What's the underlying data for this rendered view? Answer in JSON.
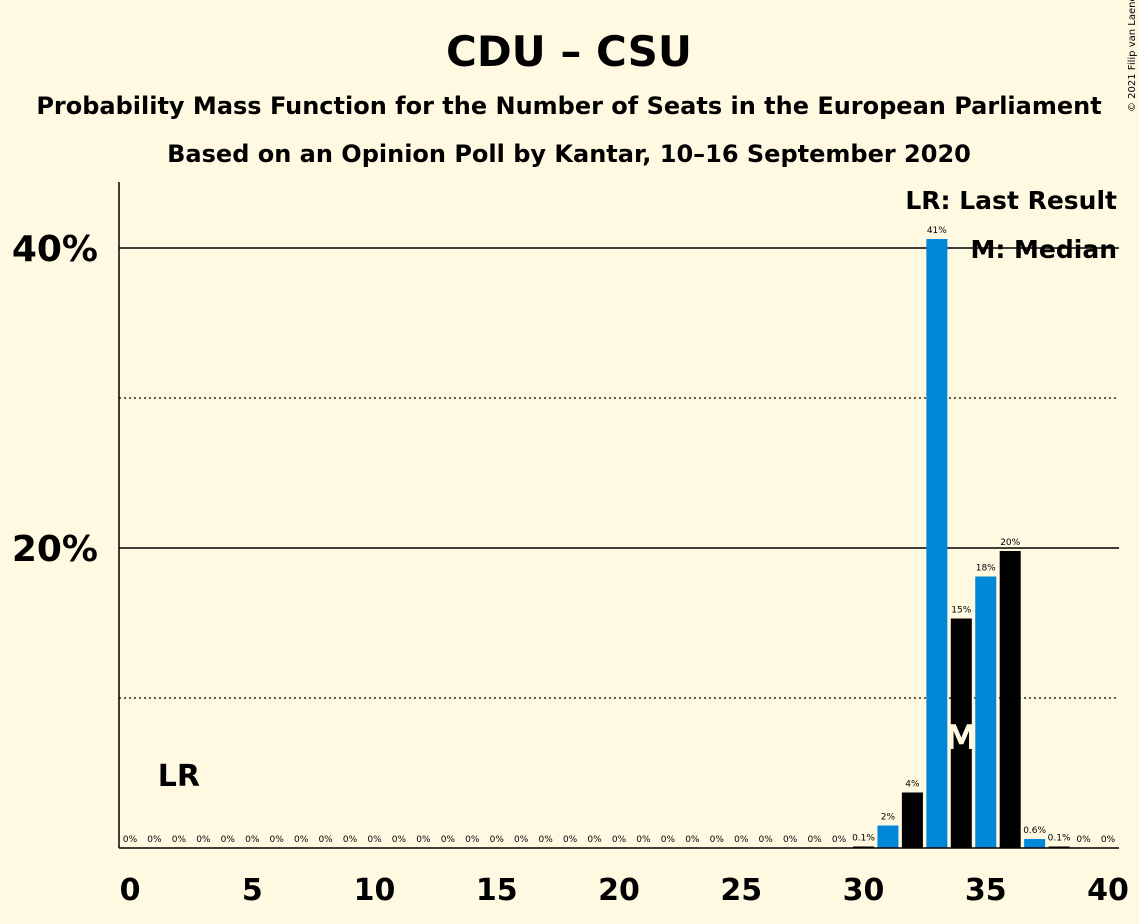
{
  "chart_data": {
    "type": "bar",
    "title": "CDU – CSU",
    "subtitle": "Probability Mass Function for the Number of Seats in the European Parliament",
    "subtitle2": "Based on an Opinion Poll by Kantar, 10–16 September 2020",
    "copyright": "© 2021 Filip van Laenen",
    "x": [
      0,
      1,
      2,
      3,
      4,
      5,
      6,
      7,
      8,
      9,
      10,
      11,
      12,
      13,
      14,
      15,
      16,
      17,
      18,
      19,
      20,
      21,
      22,
      23,
      24,
      25,
      26,
      27,
      28,
      29,
      30,
      31,
      32,
      33,
      34,
      35,
      36,
      37,
      38,
      39,
      40
    ],
    "values": [
      0,
      0,
      0,
      0,
      0,
      0,
      0,
      0,
      0,
      0,
      0,
      0,
      0,
      0,
      0,
      0,
      0,
      0,
      0,
      0,
      0,
      0,
      0,
      0,
      0,
      0,
      0,
      0,
      0,
      0,
      0.1,
      1.5,
      3.7,
      40.6,
      15.3,
      18.1,
      19.8,
      0.6,
      0.1,
      0,
      0
    ],
    "value_labels": [
      "0%",
      "0%",
      "0%",
      "0%",
      "0%",
      "0%",
      "0%",
      "0%",
      "0%",
      "0%",
      "0%",
      "0%",
      "0%",
      "0%",
      "0%",
      "0%",
      "0%",
      "0%",
      "0%",
      "0%",
      "0%",
      "0%",
      "0%",
      "0%",
      "0%",
      "0%",
      "0%",
      "0%",
      "0%",
      "0%",
      "0.1%",
      "2%",
      "4%",
      "41%",
      "15%",
      "18%",
      "20%",
      "0.6%",
      "0.1%",
      "0%",
      "0%"
    ],
    "xlim": [
      0,
      40
    ],
    "ylim": [
      0,
      44
    ],
    "x_ticks": [
      0,
      5,
      10,
      15,
      20,
      25,
      30,
      35,
      40
    ],
    "y_ticks": [
      {
        "value": 20,
        "label": "20%"
      },
      {
        "value": 40,
        "label": "40%"
      }
    ],
    "dotted_gridlines": [
      10,
      30
    ],
    "median_seat": 34,
    "median_marker": "M",
    "last_result_seat": 2,
    "last_result_marker": "LR",
    "legend": [
      "LR: Last Result",
      "M: Median"
    ],
    "legend_position": "top-right",
    "colors": {
      "background": "#fff9e2",
      "bar_primary": "#0087d7",
      "bar_highlight": "#000000",
      "marker_text": "#fff9e2"
    }
  }
}
